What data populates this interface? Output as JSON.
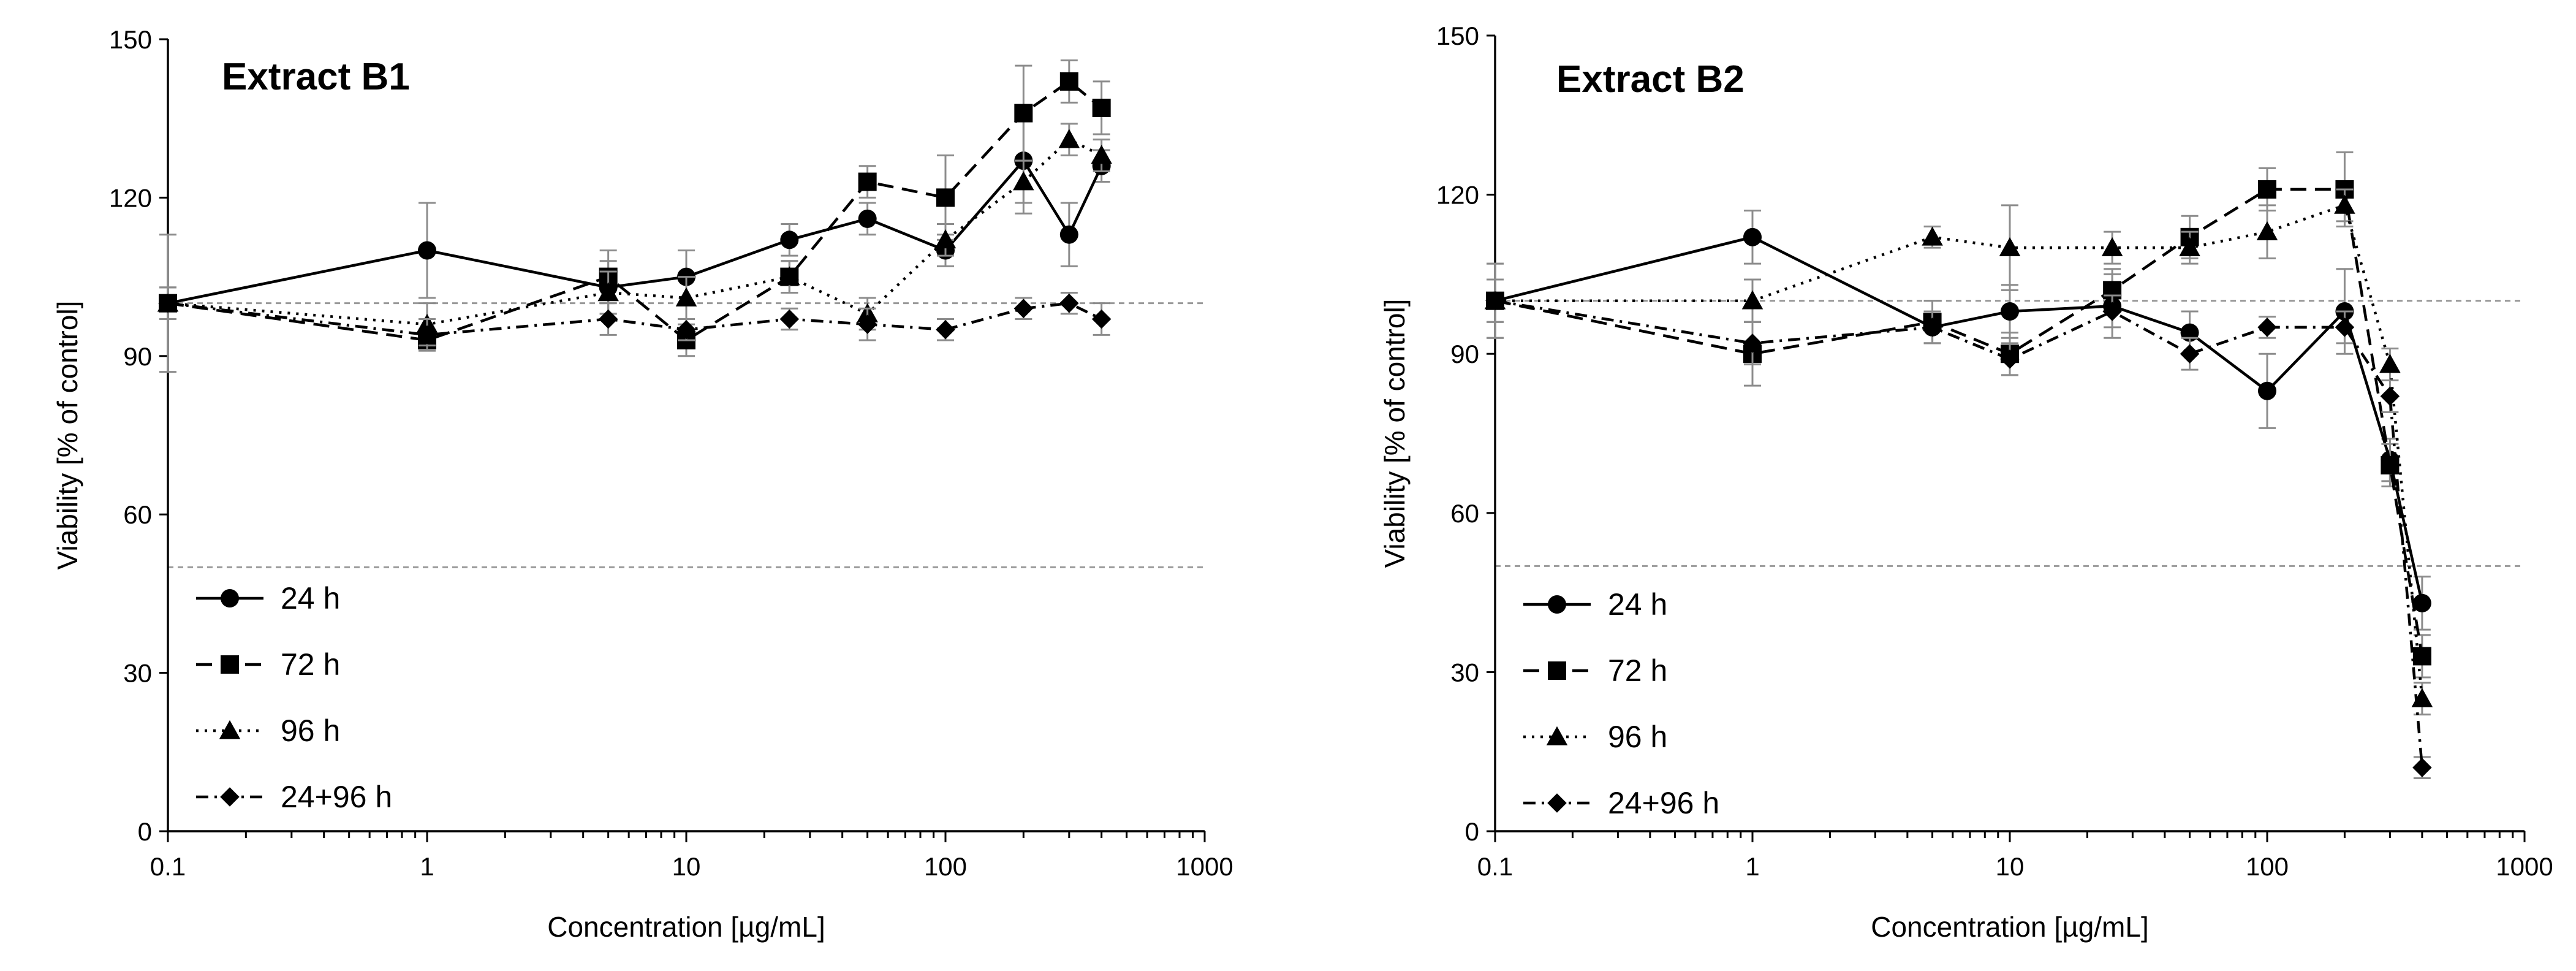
{
  "chart_data": [
    {
      "type": "line",
      "title": "Extract B1",
      "xlabel": "Concentration [µg/mL]",
      "ylabel": "Viability [% of control]",
      "xscale": "log",
      "xlim": [
        0.1,
        1000
      ],
      "ylim": [
        0,
        150
      ],
      "xticks": [
        0.1,
        1,
        10,
        100,
        1000
      ],
      "xtick_labels": [
        "0.1",
        "1",
        "10",
        "100",
        "1000"
      ],
      "yticks": [
        0,
        30,
        60,
        90,
        120,
        150
      ],
      "ytick_labels": [
        "0",
        "30",
        "60",
        "90",
        "120",
        "150"
      ],
      "reference_lines": [
        100,
        50
      ],
      "legend_position": "bottom-left",
      "series": [
        {
          "name": "24 h",
          "marker": "circle",
          "line": "solid",
          "x": [
            0.1,
            1,
            5,
            10,
            25,
            50,
            100,
            200,
            300,
            400
          ],
          "y": [
            100,
            110,
            103,
            105,
            112,
            116,
            110,
            127,
            113,
            126
          ],
          "err": [
            13,
            9,
            5,
            5,
            3,
            3,
            3,
            10,
            6,
            3
          ]
        },
        {
          "name": "72 h",
          "marker": "square",
          "line": "dashed",
          "x": [
            0.1,
            1,
            5,
            10,
            25,
            50,
            100,
            200,
            300,
            400
          ],
          "y": [
            100,
            93,
            105,
            93,
            105,
            123,
            120,
            136,
            142,
            137
          ],
          "err": [
            3,
            2,
            5,
            3,
            3,
            3,
            8,
            9,
            4,
            5
          ]
        },
        {
          "name": "96 h",
          "marker": "triangle",
          "line": "dotted",
          "x": [
            0.1,
            1,
            5,
            10,
            25,
            50,
            100,
            200,
            300,
            400
          ],
          "y": [
            100,
            96,
            102,
            101,
            105,
            98,
            112,
            123,
            131,
            128
          ],
          "err": [
            3,
            4,
            4,
            4,
            3,
            3,
            3,
            4,
            3,
            3
          ]
        },
        {
          "name": "24+96 h",
          "marker": "diamond",
          "line": "dashdot",
          "x": [
            0.1,
            1,
            5,
            10,
            25,
            50,
            100,
            200,
            300,
            400
          ],
          "y": [
            100,
            94,
            97,
            95,
            97,
            96,
            95,
            99,
            100,
            97
          ],
          "err": [
            3,
            3,
            3,
            2,
            2,
            3,
            2,
            2,
            2,
            3
          ]
        }
      ]
    },
    {
      "type": "line",
      "title": "Extract B2",
      "xlabel": "Concentration [µg/mL]",
      "ylabel": "Viability [% of control]",
      "xscale": "log",
      "xlim": [
        0.1,
        1000
      ],
      "ylim": [
        0,
        150
      ],
      "xticks": [
        0.1,
        1,
        10,
        100,
        1000
      ],
      "xtick_labels": [
        "0.1",
        "1",
        "10",
        "100",
        "1000"
      ],
      "yticks": [
        0,
        30,
        60,
        90,
        120,
        150
      ],
      "ytick_labels": [
        "0",
        "30",
        "60",
        "90",
        "120",
        "150"
      ],
      "reference_lines": [
        100,
        50
      ],
      "legend_position": "bottom-left",
      "series": [
        {
          "name": "24 h",
          "marker": "circle",
          "line": "solid",
          "x": [
            0.1,
            1,
            5,
            10,
            25,
            50,
            100,
            200,
            300,
            400
          ],
          "y": [
            100,
            112,
            95,
            98,
            99,
            94,
            83,
            98,
            70,
            43
          ],
          "err": [
            7,
            5,
            3,
            5,
            6,
            4,
            7,
            8,
            4,
            5
          ]
        },
        {
          "name": "72 h",
          "marker": "square",
          "line": "dashed",
          "x": [
            0.1,
            1,
            5,
            10,
            25,
            50,
            100,
            200,
            300,
            400
          ],
          "y": [
            100,
            90,
            96,
            90,
            102,
            112,
            121,
            121,
            69,
            33
          ],
          "err": [
            7,
            6,
            4,
            4,
            4,
            4,
            4,
            7,
            4,
            4
          ]
        },
        {
          "name": "96 h",
          "marker": "triangle",
          "line": "dotted",
          "x": [
            0.1,
            1,
            5,
            10,
            25,
            50,
            100,
            200,
            300,
            400
          ],
          "y": [
            100,
            100,
            112,
            110,
            110,
            110,
            113,
            118,
            88,
            25
          ],
          "err": [
            4,
            4,
            2,
            8,
            3,
            3,
            5,
            3,
            3,
            3
          ]
        },
        {
          "name": "24+96 h",
          "marker": "diamond",
          "line": "dashdot",
          "x": [
            0.1,
            1,
            5,
            10,
            25,
            50,
            100,
            200,
            300,
            400
          ],
          "y": [
            100,
            92,
            95,
            89,
            98,
            90,
            95,
            95,
            82,
            12
          ],
          "err": [
            4,
            4,
            3,
            3,
            3,
            3,
            2,
            3,
            3,
            2
          ]
        }
      ]
    }
  ]
}
